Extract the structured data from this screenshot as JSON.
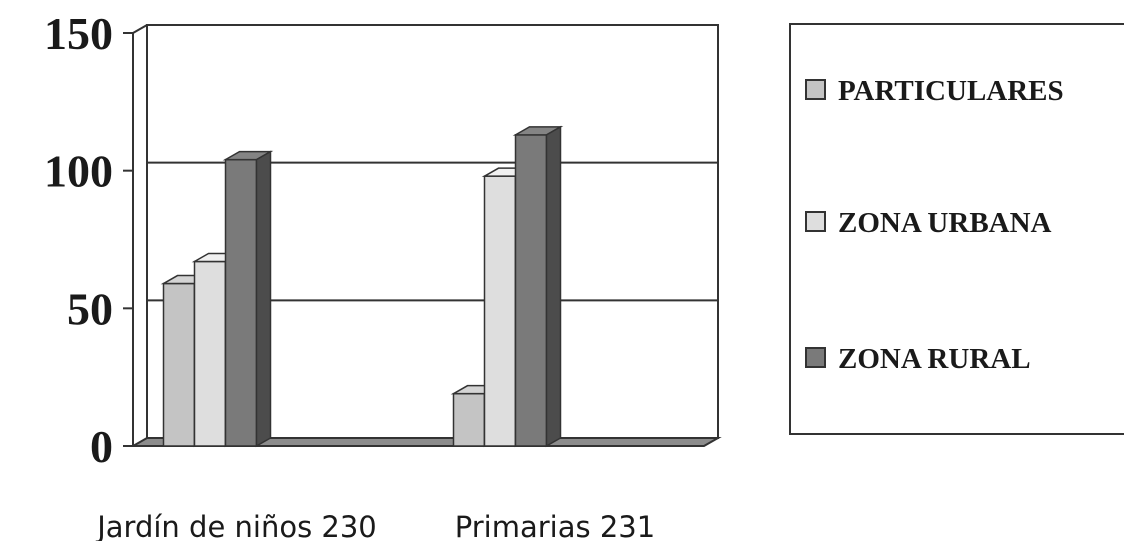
{
  "chart_data": {
    "type": "bar",
    "title": "",
    "xlabel": "",
    "ylabel": "",
    "categories": [
      "Jardín de niños 230",
      "Primarias 231"
    ],
    "series": [
      {
        "name": "PARTICULARES",
        "values": [
          59,
          19
        ],
        "color": "#c4c4c4"
      },
      {
        "name": "ZONA URBANA",
        "values": [
          67,
          98
        ],
        "color": "#dedede"
      },
      {
        "name": "ZONA RURAL",
        "values": [
          104,
          113
        ],
        "color": "#7a7a7a"
      }
    ],
    "yticks": [
      "0",
      "50",
      "100",
      "150"
    ],
    "ylim": [
      0,
      150
    ],
    "grid": true,
    "legend_position": "right",
    "legend_labels": [
      "PARTICULARES",
      "ZONA URBANA",
      "ZONA RURAL"
    ]
  }
}
